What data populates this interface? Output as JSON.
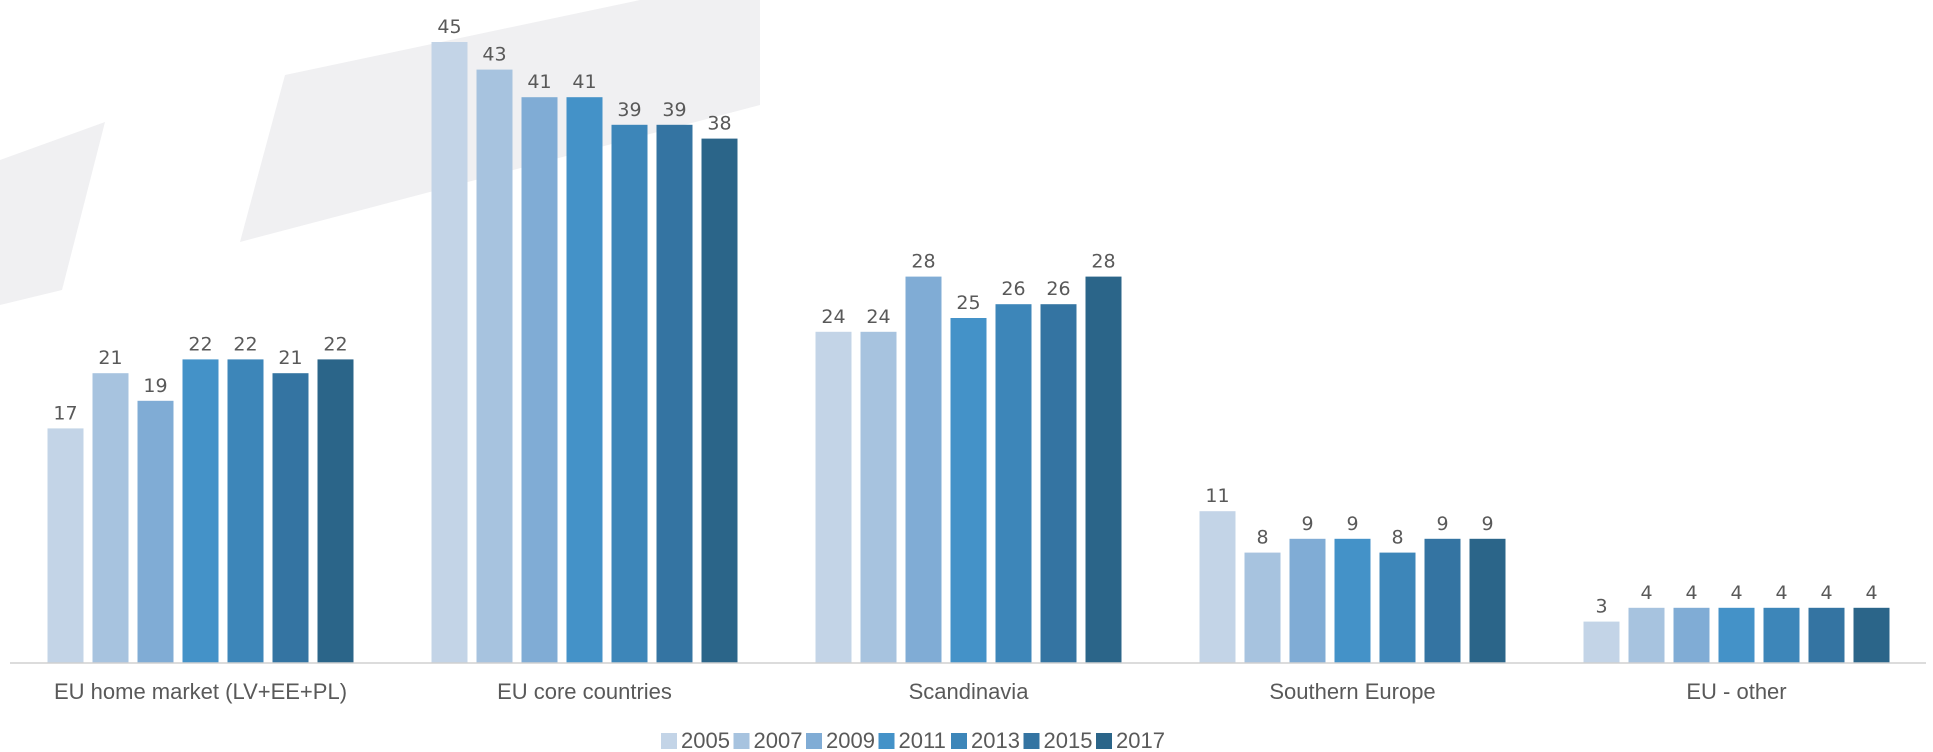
{
  "chart_data": {
    "type": "bar",
    "categories": [
      "EU home market (LV+EE+PL)",
      "EU core countries",
      "Scandinavia",
      "Southern Europe",
      "EU - other"
    ],
    "series": [
      {
        "name": "2005",
        "color": "#c3d4e7",
        "values": [
          17,
          45,
          24,
          11,
          3
        ]
      },
      {
        "name": "2007",
        "color": "#a7c3df",
        "values": [
          21,
          43,
          24,
          8,
          4
        ]
      },
      {
        "name": "2009",
        "color": "#80acd5",
        "values": [
          19,
          41,
          28,
          9,
          4
        ]
      },
      {
        "name": "2011",
        "color": "#4492c8",
        "values": [
          22,
          41,
          25,
          9,
          4
        ]
      },
      {
        "name": "2013",
        "color": "#3d86b9",
        "values": [
          22,
          39,
          26,
          8,
          4
        ]
      },
      {
        "name": "2015",
        "color": "#3474a2",
        "values": [
          21,
          39,
          26,
          9,
          4
        ]
      },
      {
        "name": "2017",
        "color": "#2b6589",
        "values": [
          22,
          38,
          28,
          9,
          4
        ]
      }
    ],
    "title": "",
    "xlabel": "",
    "ylabel": "",
    "ylim": [
      0,
      45
    ],
    "grid": false,
    "legend": "bottom-center",
    "data_labels": true
  }
}
